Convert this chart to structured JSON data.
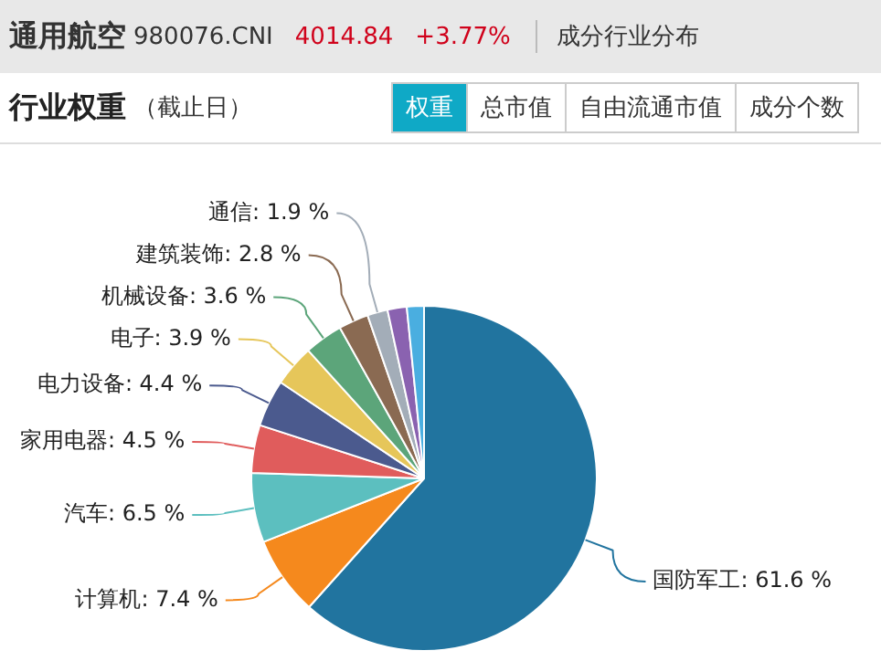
{
  "chart_data": {
    "type": "pie",
    "title": "行业权重",
    "subtitle": "（截止日）",
    "annotations": [
      "通用航空",
      "980076.CNI",
      "4014.84",
      "+3.77%",
      "成分行业分布",
      "权重",
      "总市值",
      "自由流通市值",
      "成分个数"
    ],
    "categories": [
      "国防军工",
      "计算机",
      "汽车",
      "家用电器",
      "电力设备",
      "电子",
      "机械设备",
      "建筑装饰",
      "通信",
      null,
      null
    ],
    "values": [
      61.6,
      7.4,
      6.5,
      4.5,
      4.4,
      3.9,
      3.6,
      2.8,
      1.9,
      1.8,
      1.6
    ],
    "value_labels": [
      "61.6 %",
      "7.4 %",
      "6.5 %",
      "4.5 %",
      "4.4 %",
      "3.9 %",
      "3.6 %",
      "2.8 %",
      "1.9 %",
      null,
      null
    ],
    "colors": [
      "#21749f",
      "#f5891d",
      "#5cbfbf",
      "#e05c5c",
      "#4b5a8e",
      "#e6c65a",
      "#5ca57a",
      "#8a6a52",
      "#a3adb8",
      "#8a62b0",
      "#4aaee0"
    ],
    "legend": false
  }
}
